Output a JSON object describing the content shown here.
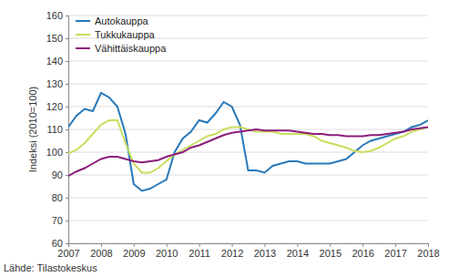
{
  "chart_data": {
    "type": "line",
    "y_label": "Indeksi (2010=100)",
    "annotations": [
      "Lähde: Tilastokeskus"
    ],
    "x": [
      2007,
      2007.25,
      2007.5,
      2007.75,
      2008,
      2008.25,
      2008.5,
      2008.75,
      2009,
      2009.25,
      2009.5,
      2009.75,
      2010,
      2010.25,
      2010.5,
      2010.75,
      2011,
      2011.25,
      2011.5,
      2011.75,
      2012,
      2012.25,
      2012.5,
      2012.75,
      2013,
      2013.25,
      2013.5,
      2013.75,
      2014,
      2014.25,
      2014.5,
      2014.75,
      2015,
      2015.25,
      2015.5,
      2015.75,
      2016,
      2016.25,
      2016.5,
      2016.75,
      2017,
      2017.25,
      2017.5,
      2017.75,
      2018
    ],
    "series": [
      {
        "name": "Autokauppa",
        "color": "#2878b8",
        "values": [
          111,
          116,
          119,
          118,
          126,
          124,
          120,
          108,
          86,
          83,
          84,
          86,
          88,
          100,
          106,
          109,
          114,
          113,
          117,
          122,
          120,
          112,
          92,
          92,
          91,
          94,
          95,
          96,
          96,
          95,
          95,
          95,
          95,
          96,
          97,
          100,
          103,
          105,
          106,
          107,
          108,
          109,
          111,
          112,
          114
        ]
      },
      {
        "name": "Tukkukauppa",
        "color": "#c9dd5c",
        "values": [
          99.5,
          101,
          104,
          108,
          112,
          114,
          114,
          104,
          95,
          91,
          91,
          93,
          96,
          99,
          101,
          103,
          105,
          107,
          108,
          110,
          111,
          111,
          110,
          109,
          109,
          109,
          108,
          108,
          108,
          108,
          107,
          105,
          104,
          103,
          102,
          100.5,
          100,
          100.5,
          102,
          104,
          106,
          107,
          109,
          110,
          111
        ]
      },
      {
        "name": "Vähittäiskauppa",
        "color": "#8c1d7c",
        "values": [
          89.5,
          91.5,
          93,
          95,
          97,
          98,
          98,
          97,
          96,
          95.5,
          96,
          96.5,
          98,
          99,
          100,
          102,
          103,
          104.5,
          106,
          107.5,
          108.5,
          109,
          109.5,
          110,
          109.5,
          109.5,
          109.5,
          109.5,
          109,
          108.5,
          108,
          108,
          107.5,
          107.5,
          107,
          107,
          107,
          107.5,
          107.5,
          108,
          108.5,
          109,
          110,
          110.5,
          111
        ]
      }
    ],
    "xlim": [
      2007,
      2018
    ],
    "xticks": [
      2007,
      2008,
      2009,
      2010,
      2011,
      2012,
      2013,
      2014,
      2015,
      2016,
      2017,
      2018
    ],
    "ylim": [
      60,
      160
    ],
    "yticks": [
      60,
      70,
      80,
      90,
      100,
      110,
      120,
      130,
      140,
      150,
      160
    ],
    "grid": true,
    "legend": "top-left"
  }
}
